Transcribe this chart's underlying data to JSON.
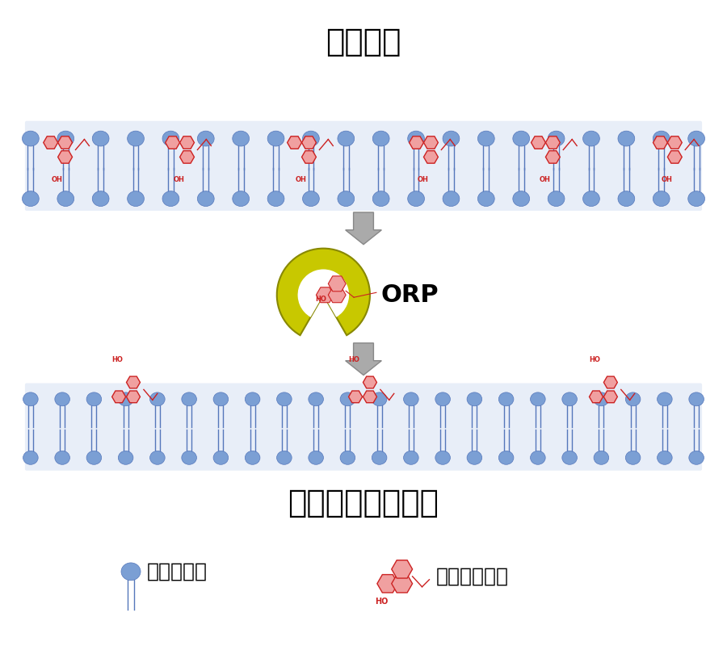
{
  "title_er": "小胞体膜",
  "title_mito": "ミトコンドリア膜",
  "label_orp": "ORP",
  "label_phospholipid": "：リン脂質",
  "label_sterol": "：ステロール",
  "bg_color": "#ffffff",
  "lipid_head_color": "#7b9fd4",
  "lipid_head_edge": "#5577bb",
  "sterol_color": "#cc2222",
  "sterol_fill": "#f0a0a0",
  "arrow_color": "#aaaaaa",
  "arrow_edge": "#888888",
  "orp_color_outer": "#8b8b00",
  "orp_color_inner": "#cccc00",
  "oh_color": "#cc2222",
  "title_fontsize": 28,
  "label_fontsize": 18,
  "orp_fontsize": 22
}
